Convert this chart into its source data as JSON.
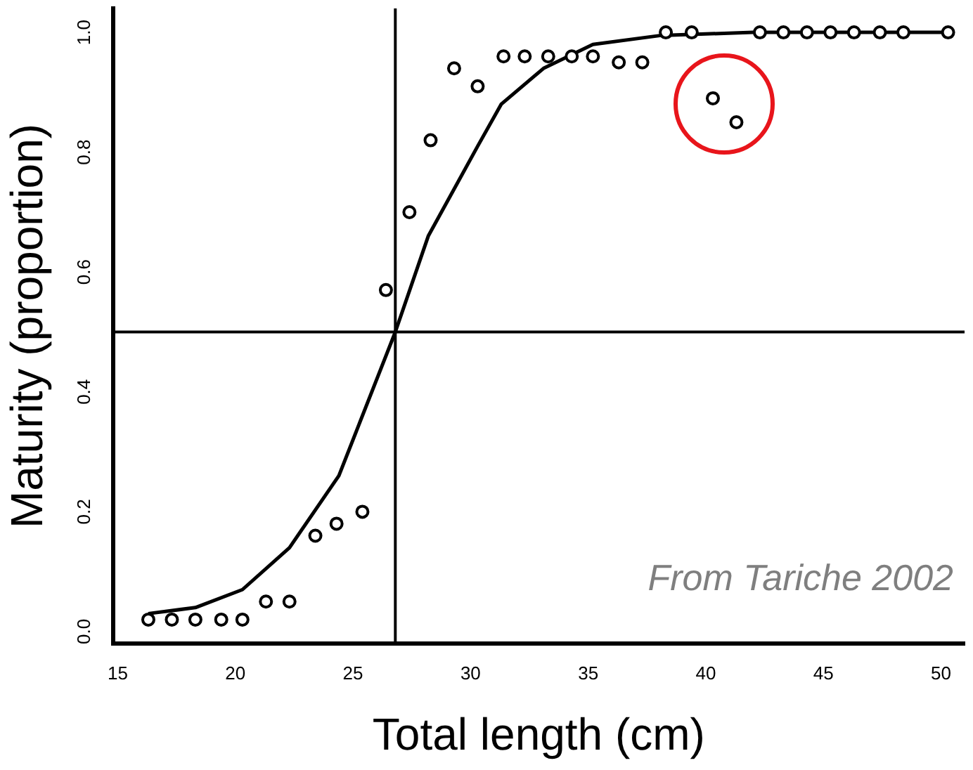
{
  "chart_data": {
    "type": "scatter",
    "xlabel": "Total length (cm)",
    "ylabel": "Maturity (proportion)",
    "xlim": [
      14.8,
      51
    ],
    "xticks": [
      15,
      20,
      25,
      30,
      35,
      40,
      45,
      50
    ],
    "ylim": [
      -0.02,
      1.04
    ],
    "yticks": [
      {
        "value": 0,
        "label": "0.0"
      },
      0.2,
      0.4,
      0.6,
      0.8,
      {
        "value": 1,
        "label": "1.0"
      }
    ],
    "grid": false,
    "legend": false,
    "marker": "circle",
    "series": [
      {
        "type": "scatter",
        "color": "#000000",
        "x": [
          16.3,
          17.3,
          18.3,
          19.4,
          20.3,
          21.3,
          22.3,
          23.4,
          24.3,
          25.4,
          26.4,
          27.4,
          28.3,
          29.3,
          30.3,
          31.4,
          32.3,
          33.3,
          34.3,
          35.2,
          36.3,
          37.3,
          38.3,
          39.4,
          40.3,
          41.3,
          42.3,
          43.3,
          44.3,
          45.3,
          46.3,
          47.4,
          48.4,
          50.3
        ],
        "values": [
          0.02,
          0.02,
          0.02,
          0.02,
          0.02,
          0.05,
          0.05,
          0.16,
          0.18,
          0.2,
          0.57,
          0.7,
          0.82,
          0.94,
          0.91,
          0.96,
          0.96,
          0.96,
          0.96,
          0.96,
          0.95,
          0.95,
          1.0,
          1.0,
          0.89,
          0.85,
          1.0,
          1.0,
          1.0,
          1.0,
          1.0,
          1.0,
          1.0,
          1.0
        ]
      },
      {
        "type": "line",
        "color": "#000000",
        "marker": "none",
        "x": [
          16.3,
          18.3,
          20.3,
          22.3,
          24.4,
          26.8,
          28.2,
          30.3,
          31.3,
          33.1,
          35.2,
          38.1,
          42,
          50.3
        ],
        "values": [
          0.03,
          0.04,
          0.07,
          0.14,
          0.26,
          0.5,
          0.66,
          0.81,
          0.88,
          0.94,
          0.98,
          0.995,
          1.0,
          1.0
        ]
      }
    ],
    "ref_lines": [
      {
        "axis": "x",
        "value": 26.8,
        "color": "#000000"
      },
      {
        "axis": "y",
        "value": 0.5,
        "color": "#000000"
      }
    ],
    "annotations": [
      "From Tariche 2002"
    ]
  }
}
